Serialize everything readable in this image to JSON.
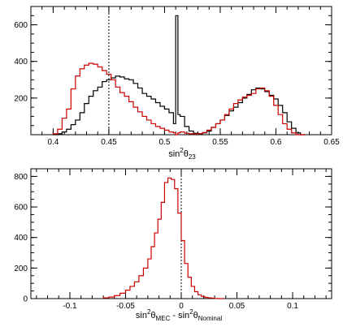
{
  "chart_data": [
    {
      "type": "line",
      "title": "",
      "xlabel": "sin²θ23",
      "xlabel_parts": {
        "base": "sin",
        "sup": "2",
        "theta": "θ",
        "sub": "23"
      },
      "ylabel": "",
      "xlim": [
        0.38,
        0.65
      ],
      "ylim": [
        0,
        700
      ],
      "xticks": [
        0.4,
        0.45,
        0.5,
        0.55,
        0.6,
        0.65
      ],
      "xtick_labels": [
        "0.4",
        "0.45",
        "0.5",
        "0.55",
        "0.6",
        "0.65"
      ],
      "yticks": [
        200,
        400,
        600
      ],
      "ytick_labels": [
        "200",
        "400",
        "600"
      ],
      "vlines": [
        0.45
      ],
      "grid": false,
      "series": [
        {
          "color": "#000000",
          "x": [
            0.4,
            0.404,
            0.408,
            0.412,
            0.416,
            0.42,
            0.424,
            0.428,
            0.432,
            0.436,
            0.44,
            0.444,
            0.448,
            0.452,
            0.456,
            0.46,
            0.464,
            0.468,
            0.472,
            0.476,
            0.48,
            0.484,
            0.488,
            0.492,
            0.496,
            0.5,
            0.504,
            0.508,
            0.51,
            0.512,
            0.514,
            0.518,
            0.522,
            0.526,
            0.53,
            0.534,
            0.538,
            0.542,
            0.546,
            0.55,
            0.554,
            0.558,
            0.562,
            0.566,
            0.57,
            0.574,
            0.578,
            0.582,
            0.586,
            0.59,
            0.594,
            0.598,
            0.602,
            0.606,
            0.61,
            0.614,
            0.618,
            0.622
          ],
          "y": [
            0,
            5,
            15,
            30,
            55,
            80,
            120,
            170,
            210,
            240,
            260,
            290,
            300,
            310,
            320,
            315,
            305,
            300,
            280,
            255,
            225,
            210,
            195,
            175,
            155,
            140,
            120,
            60,
            650,
            110,
            100,
            45,
            20,
            8,
            5,
            10,
            20,
            40,
            60,
            80,
            105,
            130,
            150,
            175,
            200,
            220,
            245,
            255,
            250,
            235,
            215,
            195,
            160,
            120,
            70,
            35,
            10,
            0
          ],
          "name": ""
        },
        {
          "color": "#cc0000",
          "x": [
            0.4,
            0.404,
            0.408,
            0.412,
            0.416,
            0.42,
            0.424,
            0.428,
            0.432,
            0.436,
            0.44,
            0.444,
            0.448,
            0.452,
            0.456,
            0.46,
            0.464,
            0.468,
            0.472,
            0.476,
            0.48,
            0.484,
            0.488,
            0.492,
            0.496,
            0.5,
            0.504,
            0.508,
            0.51,
            0.512,
            0.514,
            0.518,
            0.522,
            0.526,
            0.53,
            0.534,
            0.538,
            0.542,
            0.546,
            0.55,
            0.554,
            0.558,
            0.562,
            0.566,
            0.57,
            0.574,
            0.578,
            0.582,
            0.586,
            0.59,
            0.594,
            0.598,
            0.602,
            0.606,
            0.61,
            0.614,
            0.618,
            0.622
          ],
          "y": [
            5,
            30,
            90,
            140,
            250,
            320,
            360,
            380,
            390,
            385,
            370,
            350,
            330,
            300,
            260,
            230,
            210,
            180,
            150,
            125,
            100,
            80,
            60,
            45,
            35,
            25,
            15,
            10,
            0,
            10,
            15,
            8,
            5,
            4,
            6,
            12,
            25,
            40,
            60,
            80,
            110,
            140,
            170,
            190,
            205,
            215,
            225,
            250,
            255,
            240,
            210,
            160,
            110,
            60,
            30,
            10,
            0,
            0
          ],
          "name": ""
        }
      ]
    },
    {
      "type": "line",
      "title": "",
      "xlabel": "sin²θMEC - sin²θNominal",
      "xlabel_parts": {
        "left": {
          "base": "sin",
          "sup": "2",
          "theta": "θ",
          "sub": "MEC"
        },
        "sep": " - ",
        "right": {
          "base": "sin",
          "sup": "2",
          "theta": "θ",
          "sub": "Nominal"
        }
      },
      "ylabel": "",
      "xlim": [
        -0.135,
        0.135
      ],
      "ylim": [
        0,
        850
      ],
      "xticks": [
        -0.1,
        -0.05,
        0,
        0.05,
        0.1
      ],
      "xtick_labels": [
        "-0.1",
        "-0.05",
        "0",
        "0.05",
        "0.1"
      ],
      "yticks": [
        0,
        200,
        400,
        600,
        800
      ],
      "ytick_labels": [
        "0",
        "200",
        "400",
        "600",
        "800"
      ],
      "vlines": [
        0
      ],
      "grid": false,
      "series": [
        {
          "color": "#cc0000",
          "x": [
            -0.07,
            -0.065,
            -0.06,
            -0.055,
            -0.05,
            -0.046,
            -0.042,
            -0.038,
            -0.034,
            -0.03,
            -0.027,
            -0.024,
            -0.021,
            -0.018,
            -0.015,
            -0.012,
            -0.009,
            -0.006,
            -0.003,
            0.0,
            0.003,
            0.006,
            0.009,
            0.012,
            0.015,
            0.018,
            0.021,
            0.024,
            0.027,
            0.03,
            0.034
          ],
          "y": [
            5,
            10,
            20,
            35,
            55,
            80,
            110,
            150,
            200,
            260,
            340,
            430,
            520,
            630,
            760,
            790,
            780,
            720,
            560,
            380,
            230,
            140,
            80,
            45,
            25,
            15,
            8,
            5,
            3,
            1,
            0
          ],
          "name": ""
        }
      ]
    }
  ]
}
